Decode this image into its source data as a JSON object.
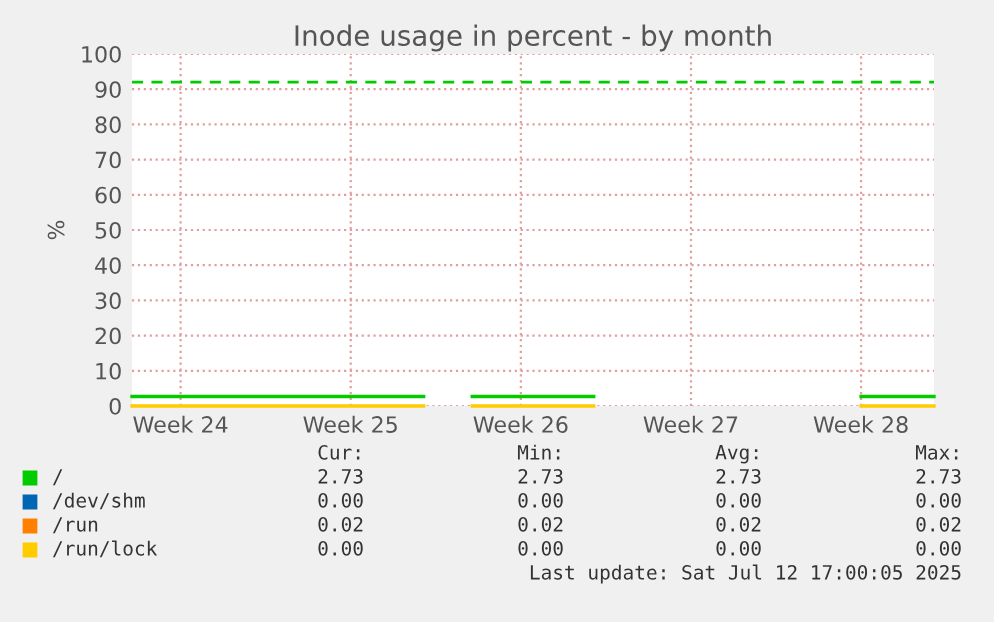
{
  "chart_data": {
    "type": "line",
    "title": "Inode usage in percent - by month",
    "ylabel": "%",
    "categories": [
      null,
      null,
      "Week 24",
      null,
      null,
      null,
      null,
      null,
      null,
      "Week 25",
      null,
      null,
      null,
      null,
      null,
      null,
      "Week 26",
      null,
      null,
      null,
      null,
      null,
      null,
      "Week 27",
      null,
      null,
      null,
      null,
      null,
      null,
      "Week 28",
      null,
      null,
      null
    ],
    "series": [
      {
        "name": "/",
        "color": "#00cc00",
        "values": [
          2.7,
          2.7,
          2.7,
          2.7,
          2.7,
          2.7,
          2.7,
          2.7,
          2.7,
          2.7,
          2.7,
          2.7,
          2.7,
          null,
          2.7,
          2.7,
          2.7,
          2.7,
          2.7,
          2.7,
          null,
          null,
          null,
          null,
          null,
          null,
          null,
          null,
          null,
          null,
          2.7,
          2.7,
          2.7,
          2.7
        ]
      },
      {
        "name": "/dev/shm",
        "color": "#0066b3",
        "values": [
          null,
          null,
          null,
          null,
          null,
          null,
          null,
          null,
          null,
          null,
          null,
          null,
          null,
          null,
          null,
          null,
          null,
          null,
          null,
          null,
          null,
          null,
          null,
          null,
          null,
          null,
          null,
          null,
          null,
          null,
          null,
          null,
          null,
          null
        ]
      },
      {
        "name": "/run",
        "color": "#ff8000",
        "values": [
          null,
          null,
          null,
          null,
          null,
          null,
          null,
          null,
          null,
          null,
          null,
          null,
          null,
          null,
          null,
          null,
          null,
          null,
          null,
          null,
          null,
          null,
          null,
          null,
          null,
          null,
          null,
          null,
          null,
          null,
          null,
          null,
          null,
          null
        ]
      },
      {
        "name": "/run/lock",
        "color": "#ffcc00",
        "values": [
          0,
          0,
          0,
          0,
          0,
          0,
          0,
          0,
          0,
          0,
          0,
          0,
          0,
          null,
          0,
          0,
          0,
          0,
          0,
          0,
          null,
          null,
          null,
          null,
          null,
          null,
          null,
          null,
          null,
          null,
          0,
          0,
          0,
          0
        ]
      }
    ],
    "ylim": [
      0,
      100
    ],
    "yticks": [
      0,
      10,
      20,
      30,
      40,
      50,
      60,
      70,
      80,
      90,
      100
    ],
    "ref_lines": [
      {
        "axis": "y",
        "value": 92,
        "color": "#00cc00",
        "line_style": "dashed"
      }
    ],
    "grid": true,
    "legend": "bottom",
    "annotations": [
      "Cur:",
      "Min:",
      "Avg:",
      "Max:",
      "2.73",
      "2.73",
      "2.73",
      "2.73",
      "0.00",
      "0.00",
      "0.00",
      "0.00",
      "0.02",
      "0.02",
      "0.02",
      "0.02",
      "0.00",
      "0.00",
      "0.00",
      "0.00",
      "Last update: Sat Jul 12 17:00:05 2025"
    ]
  }
}
